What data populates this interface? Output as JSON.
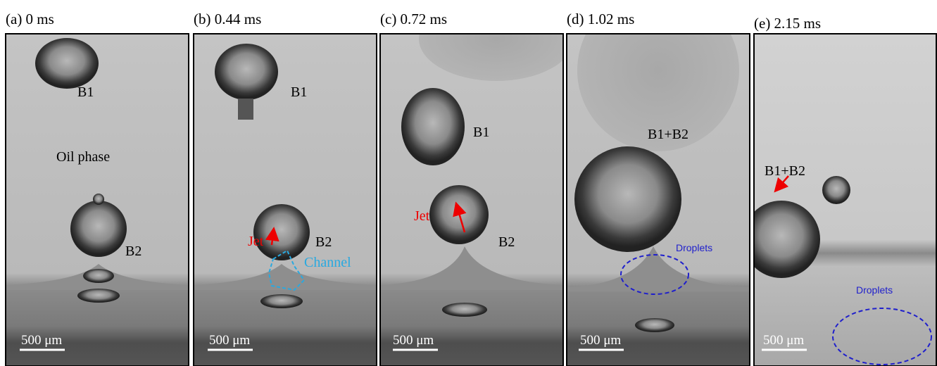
{
  "panels": [
    {
      "label": "(a) 0 ms",
      "annotations": [
        "B1",
        "Oil phase",
        "B2"
      ],
      "scale_bar": "500 μm"
    },
    {
      "label": "(b) 0.44 ms",
      "annotations": [
        "B1",
        "B2",
        "Jet",
        "Channel"
      ],
      "scale_bar": "500 μm"
    },
    {
      "label": "(c) 0.72 ms",
      "annotations": [
        "B1",
        "Jet",
        "B2"
      ],
      "scale_bar": "500 μm"
    },
    {
      "label": "(d) 1.02 ms",
      "annotations": [
        "B1+B2",
        "Droplets"
      ],
      "scale_bar": "500 μm"
    },
    {
      "label": "(e) 2.15 ms",
      "annotations": [
        "B1+B2",
        "Droplets"
      ],
      "scale_bar": "500 μm"
    }
  ]
}
